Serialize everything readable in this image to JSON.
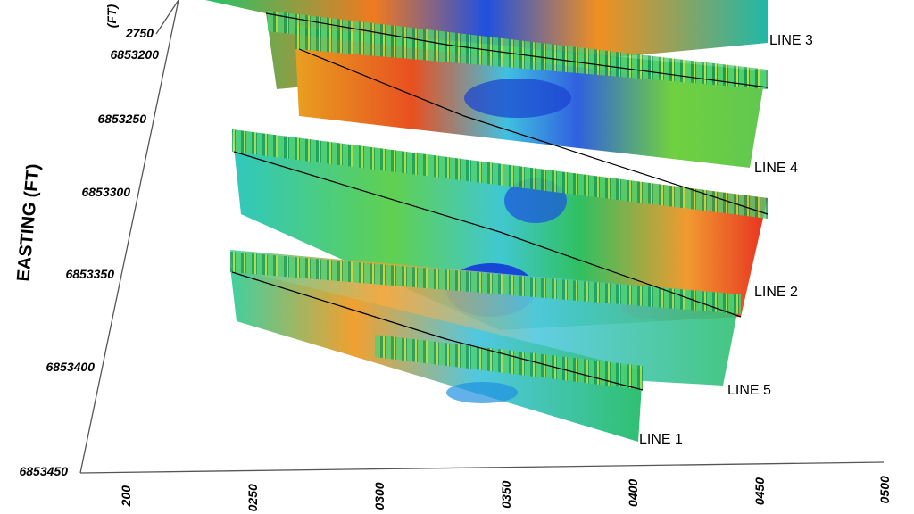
{
  "axis": {
    "vertical_title": "(FT)",
    "vertical_tick": "2750",
    "easting_title": "EASTING (FT)",
    "easting_ticks": [
      "6853200",
      "6853250",
      "6853300",
      "6853350",
      "6853400",
      "6853450"
    ],
    "northing_ticks": [
      "200",
      "0250",
      "0300",
      "0350",
      "0400",
      "0450",
      "0500"
    ]
  },
  "lines": [
    "LINE 3",
    "LINE 4",
    "LINE 2",
    "LINE 5",
    "LINE 1"
  ]
}
